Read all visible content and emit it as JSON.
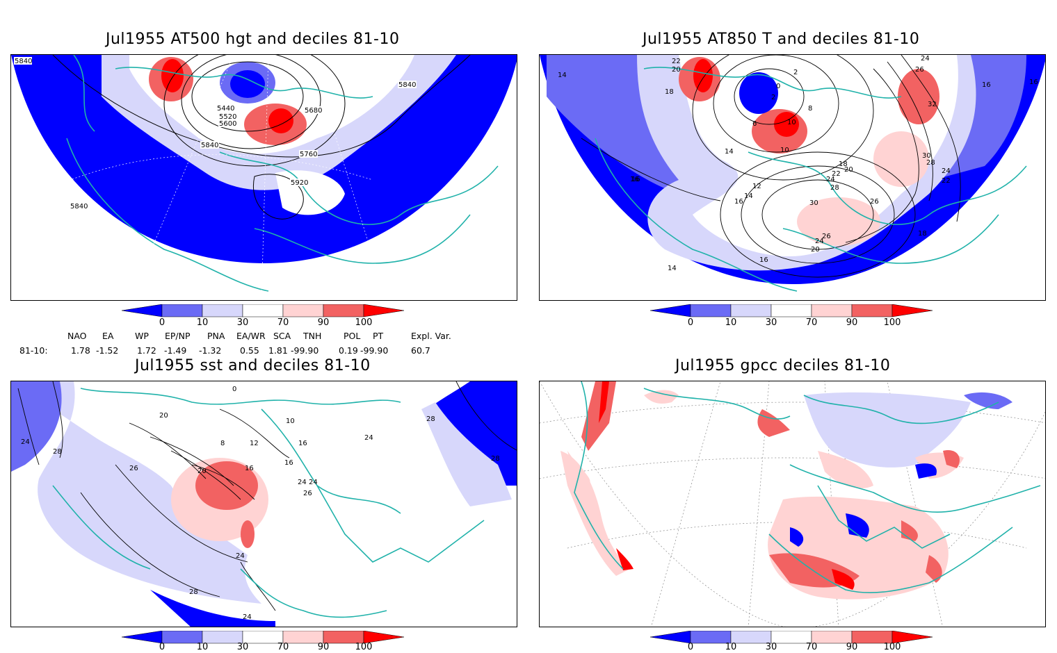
{
  "panels": [
    {
      "id": "z500",
      "title": "Jul1955 AT500 hgt and deciles 81-10",
      "contour_labels": [
        "5840",
        "5440",
        "5520",
        "5600",
        "5680",
        "5840",
        "5760",
        "5920",
        "5840",
        "5840"
      ]
    },
    {
      "id": "t850",
      "title": "Jul1955 AT850 T and deciles 81-10",
      "contour_labels": [
        "14",
        "22",
        "20",
        "18",
        "2",
        "0",
        "2",
        "8",
        "6",
        "10",
        "10",
        "14",
        "16",
        "12",
        "14",
        "16",
        "18",
        "20",
        "22",
        "24",
        "28",
        "30",
        "26",
        "26",
        "24",
        "20",
        "16",
        "14",
        "18",
        "16",
        "16",
        "24",
        "22",
        "30",
        "28",
        "32",
        "24",
        "26",
        "16"
      ]
    },
    {
      "id": "sst",
      "title": "Jul1955 sst and deciles 81-10",
      "contour_labels": [
        "24",
        "28",
        "20",
        "8",
        "12",
        "16",
        "16",
        "20",
        "16",
        "26",
        "24",
        "24",
        "24",
        "28",
        "24",
        "28",
        "24",
        "28",
        "26",
        "10",
        "0"
      ]
    },
    {
      "id": "gpcc",
      "title": "Jul1955 gpcc deciles 81-10",
      "contour_labels": []
    }
  ],
  "colorbar": {
    "labels": [
      "0",
      "10",
      "30",
      "70",
      "90",
      "100"
    ],
    "colors": [
      "#0000ff",
      "#6b6bf5",
      "#d7d7fb",
      "#ffffff",
      "#ffd3d3",
      "#f26262",
      "#ff0000"
    ]
  },
  "indices": {
    "headers": [
      "NAO",
      "EA",
      "WP",
      "EP/NP",
      "PNA",
      "EA/WR",
      "SCA",
      "TNH",
      "POL",
      "PT",
      "Expl. Var."
    ],
    "row_label": "81-10:",
    "values": [
      "1.78",
      "-1.52",
      "1.72",
      "-1.49",
      "-1.32",
      "0.55",
      "1.81",
      "-99.90",
      "0.19",
      "-99.90",
      "60.7"
    ]
  },
  "colors": {
    "coast": "#20b2aa",
    "deep_blue": "#0000ff",
    "mid_blue": "#6b6bf5",
    "light_blue": "#d7d7fb",
    "light_red": "#ffd3d3",
    "mid_red": "#f26262",
    "deep_red": "#ff0000"
  }
}
